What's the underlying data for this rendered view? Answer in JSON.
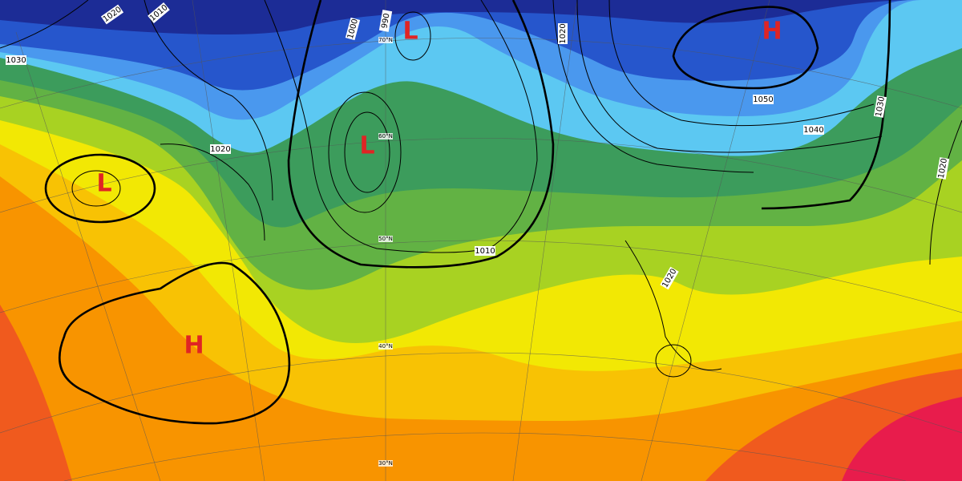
{
  "map": {
    "pressure_systems": [
      {
        "label": "L"
      },
      {
        "label": "L"
      },
      {
        "label": "L"
      },
      {
        "label": "H"
      },
      {
        "label": "H"
      }
    ],
    "isobar_labels": [
      "1020",
      "1010",
      "1030",
      "1000",
      "990",
      "1020",
      "1050",
      "1040",
      "1030",
      "1020",
      "1020",
      "1010",
      "1020"
    ],
    "latitude_labels": [
      "70°N",
      "60°N",
      "50°N",
      "40°N",
      "30°N"
    ]
  }
}
